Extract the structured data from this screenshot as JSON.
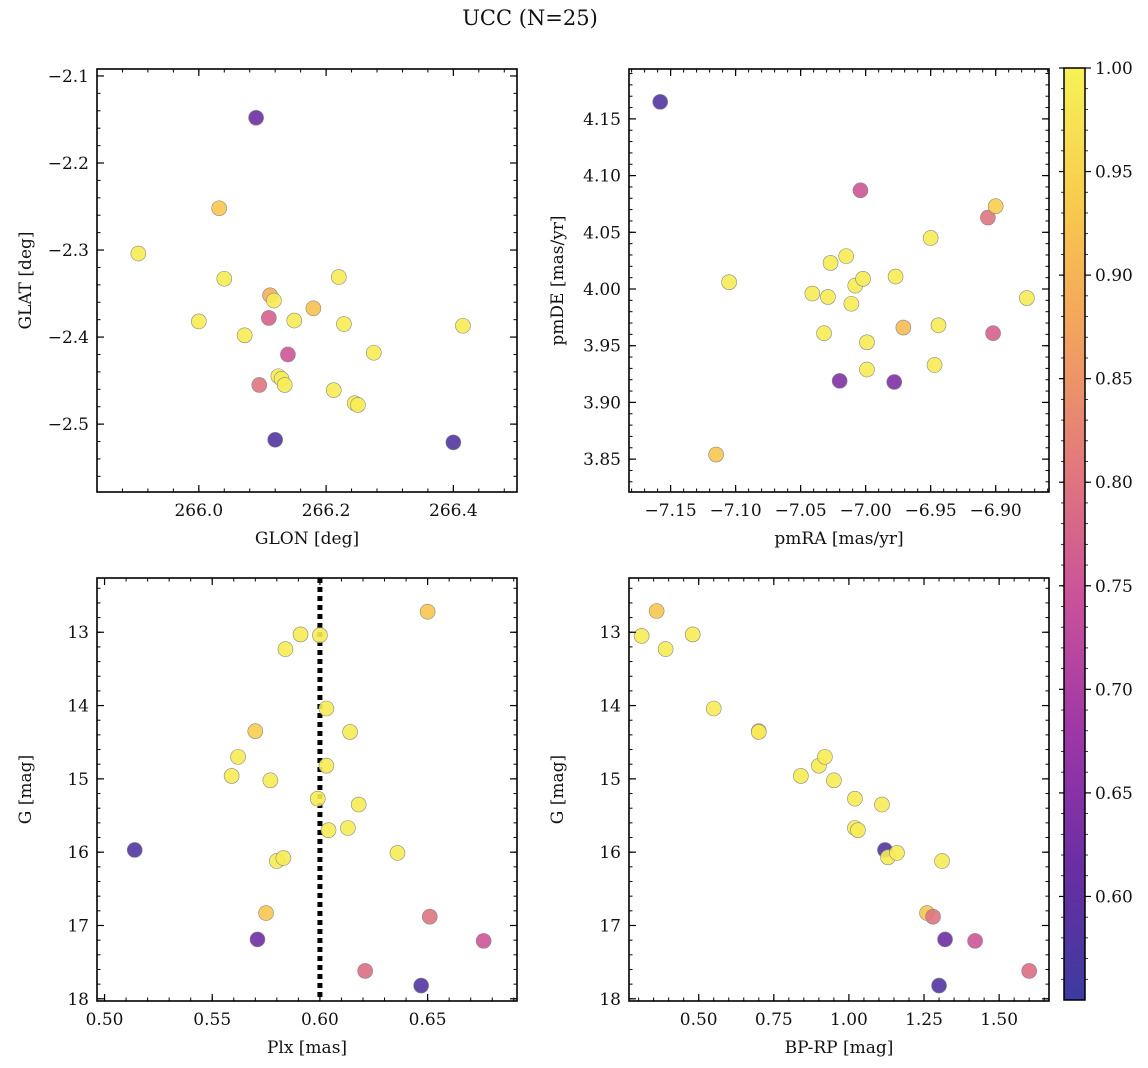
{
  "figure": {
    "title": "UCC (N=25)"
  },
  "colorbar": {
    "min": 0.55,
    "max": 1.0,
    "ticks": [
      0.6,
      0.65,
      0.7,
      0.75,
      0.8,
      0.85,
      0.9,
      0.95,
      1.0
    ],
    "tick_labels": [
      "0.60",
      "0.65",
      "0.70",
      "0.75",
      "0.80",
      "0.85",
      "0.90",
      "0.95",
      "1.00"
    ],
    "colormap": "plasma",
    "stops": [
      "#3c3b9f",
      "#6a2ea4",
      "#9d37a6",
      "#c9519a",
      "#e2787c",
      "#f2a25e",
      "#f8cb4d",
      "#f7f257"
    ]
  },
  "chart_data": [
    {
      "type": "scatter",
      "title": "",
      "xlabel": "GLON [deg]",
      "ylabel": "GLAT [deg]",
      "xlim": [
        265.84,
        266.5
      ],
      "ylim": [
        -2.578,
        -2.092
      ],
      "xticks": [
        266.0,
        266.2,
        266.4
      ],
      "xtick_labels": [
        "266.0",
        "266.2",
        "266.4"
      ],
      "yticks": [
        -2.5,
        -2.4,
        -2.3,
        -2.2,
        -2.1
      ],
      "ytick_labels": [
        "−2.5",
        "−2.4",
        "−2.3",
        "−2.2",
        "−2.1"
      ],
      "points": [
        {
          "x": 265.905,
          "y": -2.304,
          "c": 0.99
        },
        {
          "x": 266.0,
          "y": -2.382,
          "c": 0.99
        },
        {
          "x": 266.032,
          "y": -2.252,
          "c": 0.93
        },
        {
          "x": 266.04,
          "y": -2.333,
          "c": 0.99
        },
        {
          "x": 266.072,
          "y": -2.398,
          "c": 0.99
        },
        {
          "x": 266.09,
          "y": -2.148,
          "c": 0.62
        },
        {
          "x": 266.095,
          "y": -2.455,
          "c": 0.8
        },
        {
          "x": 266.11,
          "y": -2.378,
          "c": 0.77
        },
        {
          "x": 266.112,
          "y": -2.352,
          "c": 0.89
        },
        {
          "x": 266.118,
          "y": -2.358,
          "c": 0.99
        },
        {
          "x": 266.12,
          "y": -2.518,
          "c": 0.58
        },
        {
          "x": 266.125,
          "y": -2.445,
          "c": 0.99
        },
        {
          "x": 266.13,
          "y": -2.448,
          "c": 0.99
        },
        {
          "x": 266.135,
          "y": -2.455,
          "c": 0.99
        },
        {
          "x": 266.14,
          "y": -2.42,
          "c": 0.75
        },
        {
          "x": 266.15,
          "y": -2.381,
          "c": 0.99
        },
        {
          "x": 266.18,
          "y": -2.367,
          "c": 0.92
        },
        {
          "x": 266.212,
          "y": -2.461,
          "c": 0.99
        },
        {
          "x": 266.22,
          "y": -2.331,
          "c": 0.99
        },
        {
          "x": 266.228,
          "y": -2.385,
          "c": 0.99
        },
        {
          "x": 266.245,
          "y": -2.476,
          "c": 0.99
        },
        {
          "x": 266.25,
          "y": -2.478,
          "c": 0.99
        },
        {
          "x": 266.275,
          "y": -2.418,
          "c": 0.99
        },
        {
          "x": 266.4,
          "y": -2.521,
          "c": 0.58
        },
        {
          "x": 266.415,
          "y": -2.387,
          "c": 0.99
        }
      ]
    },
    {
      "type": "scatter",
      "title": "",
      "xlabel": "pmRA [mas/yr]",
      "ylabel": "pmDE [mas/yr]",
      "xlim": [
        -7.182,
        -6.859
      ],
      "ylim": [
        3.821,
        4.194
      ],
      "xticks": [
        -7.15,
        -7.1,
        -7.05,
        -7.0,
        -6.95,
        -6.9,
        -6.85
      ],
      "xtick_labels": [
        "−7.15",
        "−7.10",
        "−7.05",
        "−7.00",
        "−6.95",
        "−6.90",
        "−6.85"
      ],
      "yticks": [
        3.85,
        3.9,
        3.95,
        4.0,
        4.05,
        4.1,
        4.15
      ],
      "ytick_labels": [
        "3.85",
        "3.90",
        "3.95",
        "4.00",
        "4.05",
        "4.10",
        "4.15"
      ],
      "points": [
        {
          "x": -7.158,
          "y": 4.165,
          "c": 0.58
        },
        {
          "x": -7.115,
          "y": 3.854,
          "c": 0.93
        },
        {
          "x": -7.105,
          "y": 4.006,
          "c": 0.99
        },
        {
          "x": -7.041,
          "y": 3.996,
          "c": 0.99
        },
        {
          "x": -7.032,
          "y": 3.961,
          "c": 0.99
        },
        {
          "x": -7.029,
          "y": 3.993,
          "c": 0.99
        },
        {
          "x": -7.027,
          "y": 4.023,
          "c": 0.99
        },
        {
          "x": -7.02,
          "y": 3.919,
          "c": 0.64
        },
        {
          "x": -7.015,
          "y": 4.029,
          "c": 0.99
        },
        {
          "x": -7.011,
          "y": 3.987,
          "c": 0.99
        },
        {
          "x": -7.008,
          "y": 4.003,
          "c": 0.99
        },
        {
          "x": -7.004,
          "y": 4.087,
          "c": 0.75
        },
        {
          "x": -7.002,
          "y": 4.009,
          "c": 0.99
        },
        {
          "x": -6.999,
          "y": 3.953,
          "c": 0.99
        },
        {
          "x": -6.999,
          "y": 3.929,
          "c": 0.99
        },
        {
          "x": -6.978,
          "y": 3.918,
          "c": 0.64
        },
        {
          "x": -6.977,
          "y": 4.011,
          "c": 0.99
        },
        {
          "x": -6.971,
          "y": 3.966,
          "c": 0.91
        },
        {
          "x": -6.95,
          "y": 4.045,
          "c": 0.99
        },
        {
          "x": -6.947,
          "y": 3.933,
          "c": 0.99
        },
        {
          "x": -6.944,
          "y": 3.968,
          "c": 0.99
        },
        {
          "x": -6.906,
          "y": 4.063,
          "c": 0.8
        },
        {
          "x": -6.902,
          "y": 3.961,
          "c": 0.77
        },
        {
          "x": -6.9,
          "y": 4.073,
          "c": 0.94
        },
        {
          "x": -6.876,
          "y": 3.992,
          "c": 0.99
        }
      ]
    },
    {
      "type": "scatter",
      "title": "",
      "xlabel": "Plx [mas]",
      "ylabel": "G [mag]",
      "xlim": [
        0.4965,
        0.6915
      ],
      "ylim": [
        18.03,
        12.26
      ],
      "vline": {
        "x": 0.6,
        "style": "dotted"
      },
      "xticks": [
        0.5,
        0.55,
        0.6,
        0.65
      ],
      "xtick_labels": [
        "0.50",
        "0.55",
        "0.60",
        "0.65"
      ],
      "yticks": [
        13,
        14,
        15,
        16,
        17,
        18
      ],
      "ytick_labels": [
        "13",
        "14",
        "15",
        "16",
        "17",
        "18"
      ],
      "points": [
        {
          "x": 0.514,
          "y": 15.97,
          "c": 0.58
        },
        {
          "x": 0.559,
          "y": 14.96,
          "c": 0.99
        },
        {
          "x": 0.562,
          "y": 14.7,
          "c": 0.99
        },
        {
          "x": 0.57,
          "y": 14.35,
          "c": 0.94
        },
        {
          "x": 0.571,
          "y": 17.19,
          "c": 0.62
        },
        {
          "x": 0.575,
          "y": 16.83,
          "c": 0.93
        },
        {
          "x": 0.577,
          "y": 15.02,
          "c": 0.99
        },
        {
          "x": 0.58,
          "y": 16.12,
          "c": 0.99
        },
        {
          "x": 0.583,
          "y": 16.08,
          "c": 0.99
        },
        {
          "x": 0.584,
          "y": 13.23,
          "c": 0.99
        },
        {
          "x": 0.591,
          "y": 13.03,
          "c": 0.99
        },
        {
          "x": 0.599,
          "y": 15.27,
          "c": 0.99
        },
        {
          "x": 0.6,
          "y": 13.04,
          "c": 0.99
        },
        {
          "x": 0.603,
          "y": 14.04,
          "c": 0.99
        },
        {
          "x": 0.603,
          "y": 14.82,
          "c": 0.99
        },
        {
          "x": 0.604,
          "y": 15.7,
          "c": 0.99
        },
        {
          "x": 0.613,
          "y": 15.67,
          "c": 0.99
        },
        {
          "x": 0.614,
          "y": 14.36,
          "c": 0.99
        },
        {
          "x": 0.618,
          "y": 15.35,
          "c": 0.99
        },
        {
          "x": 0.621,
          "y": 17.62,
          "c": 0.79
        },
        {
          "x": 0.636,
          "y": 16.01,
          "c": 0.99
        },
        {
          "x": 0.647,
          "y": 17.82,
          "c": 0.58
        },
        {
          "x": 0.65,
          "y": 12.72,
          "c": 0.93
        },
        {
          "x": 0.651,
          "y": 16.88,
          "c": 0.8
        },
        {
          "x": 0.676,
          "y": 17.21,
          "c": 0.75
        }
      ]
    },
    {
      "type": "scatter",
      "title": "",
      "xlabel": "BP-RP [mag]",
      "ylabel": "G [mag]",
      "xlim": [
        0.268,
        1.666
      ],
      "ylim": [
        18.03,
        12.26
      ],
      "xticks": [
        0.5,
        0.75,
        1.0,
        1.25,
        1.5
      ],
      "xtick_labels": [
        "0.50",
        "0.75",
        "1.00",
        "1.25",
        "1.50"
      ],
      "yticks": [
        13,
        14,
        15,
        16,
        17,
        18
      ],
      "ytick_labels": [
        "13",
        "14",
        "15",
        "16",
        "17",
        "18"
      ],
      "points": [
        {
          "x": 0.31,
          "y": 13.05,
          "c": 0.99
        },
        {
          "x": 0.36,
          "y": 12.71,
          "c": 0.93
        },
        {
          "x": 0.39,
          "y": 13.23,
          "c": 0.99
        },
        {
          "x": 0.48,
          "y": 13.03,
          "c": 0.99
        },
        {
          "x": 0.55,
          "y": 14.04,
          "c": 0.99
        },
        {
          "x": 0.7,
          "y": 14.35,
          "c": 0.94
        },
        {
          "x": 0.7,
          "y": 14.36,
          "c": 0.99
        },
        {
          "x": 0.84,
          "y": 14.96,
          "c": 0.99
        },
        {
          "x": 0.9,
          "y": 14.82,
          "c": 0.99
        },
        {
          "x": 0.92,
          "y": 14.7,
          "c": 0.99
        },
        {
          "x": 0.95,
          "y": 15.02,
          "c": 0.99
        },
        {
          "x": 1.02,
          "y": 15.27,
          "c": 0.99
        },
        {
          "x": 1.02,
          "y": 15.67,
          "c": 0.99
        },
        {
          "x": 1.03,
          "y": 15.7,
          "c": 0.99
        },
        {
          "x": 1.11,
          "y": 15.35,
          "c": 0.99
        },
        {
          "x": 1.12,
          "y": 15.97,
          "c": 0.58
        },
        {
          "x": 1.13,
          "y": 16.07,
          "c": 0.99
        },
        {
          "x": 1.16,
          "y": 16.01,
          "c": 0.99
        },
        {
          "x": 1.26,
          "y": 16.83,
          "c": 0.93
        },
        {
          "x": 1.28,
          "y": 16.88,
          "c": 0.8
        },
        {
          "x": 1.3,
          "y": 17.82,
          "c": 0.58
        },
        {
          "x": 1.31,
          "y": 16.12,
          "c": 0.99
        },
        {
          "x": 1.32,
          "y": 17.19,
          "c": 0.62
        },
        {
          "x": 1.42,
          "y": 17.21,
          "c": 0.75
        },
        {
          "x": 1.6,
          "y": 17.62,
          "c": 0.79
        }
      ]
    }
  ]
}
